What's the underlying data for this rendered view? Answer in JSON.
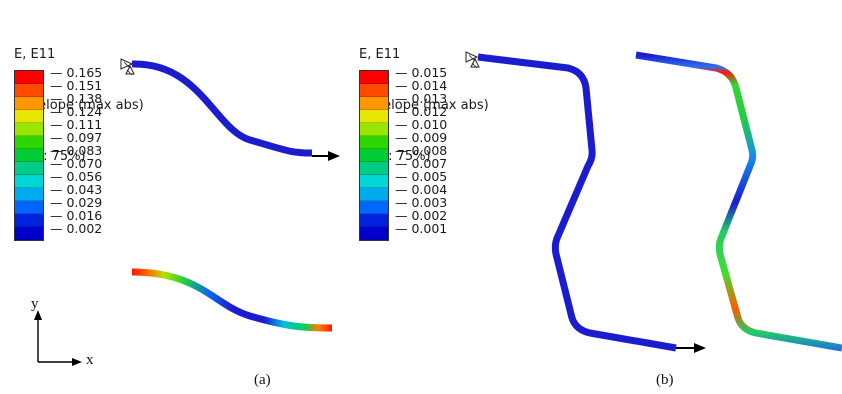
{
  "panel_a": {
    "header_lines": [
      "E, E11",
      "Envelope (max abs)",
      "(Avg: 75%)"
    ],
    "legend_values": [
      "0.165",
      "0.151",
      "0.138",
      "0.124",
      "0.111",
      "0.097",
      "0.083",
      "0.070",
      "0.056",
      "0.043",
      "0.029",
      "0.016",
      "0.002"
    ],
    "caption": "(a)"
  },
  "panel_b": {
    "header_lines": [
      "E, E11",
      "Envelope (max abs)",
      "(Avg: 75%)"
    ],
    "legend_values": [
      "0.015",
      "0.014",
      "0.013",
      "0.012",
      "0.010",
      "0.009",
      "0.008",
      "0.007",
      "0.005",
      "0.004",
      "0.003",
      "0.002",
      "0.001"
    ],
    "caption": "(b)"
  },
  "legend_colors": [
    "#ff0000",
    "#ff4a00",
    "#ff9800",
    "#e6e600",
    "#99e600",
    "#2ed600",
    "#00cc33",
    "#00cc88",
    "#00d6d6",
    "#00aaee",
    "#0066ff",
    "#0022dd",
    "#0000cc"
  ],
  "axes": {
    "x_label": "x",
    "y_label": "y"
  },
  "colors": {
    "beam_blue": "#1c1ccf",
    "arrow": "#000000"
  }
}
